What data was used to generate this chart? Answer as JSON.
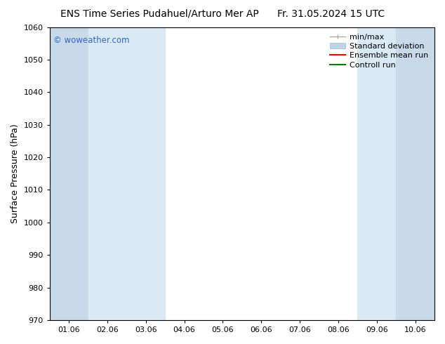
{
  "title_left": "ENS Time Series Pudahuel/Arturo Mer AP",
  "title_right": "Fr. 31.05.2024 15 UTC",
  "ylabel": "Surface Pressure (hPa)",
  "ylim": [
    970,
    1060
  ],
  "yticks": [
    970,
    980,
    990,
    1000,
    1010,
    1020,
    1030,
    1040,
    1050,
    1060
  ],
  "xtick_labels": [
    "01.06",
    "02.06",
    "03.06",
    "04.06",
    "05.06",
    "06.06",
    "07.06",
    "08.06",
    "09.06",
    "10.06"
  ],
  "watermark": "© woweather.com",
  "watermark_color": "#3366cc",
  "shade_color_1": "#c8daea",
  "shade_color_2": "#daeaf5",
  "bg_color": "#ffffff",
  "plot_bg_color": "#ffffff",
  "spine_color": "#000000",
  "tick_color": "#000000",
  "title_fontsize": 10,
  "label_fontsize": 9,
  "tick_fontsize": 8,
  "legend_fontsize": 8,
  "minmax_color": "#aaaaaa",
  "stddev_color": "#c0d4e8",
  "ensemble_color": "red",
  "control_color": "green"
}
